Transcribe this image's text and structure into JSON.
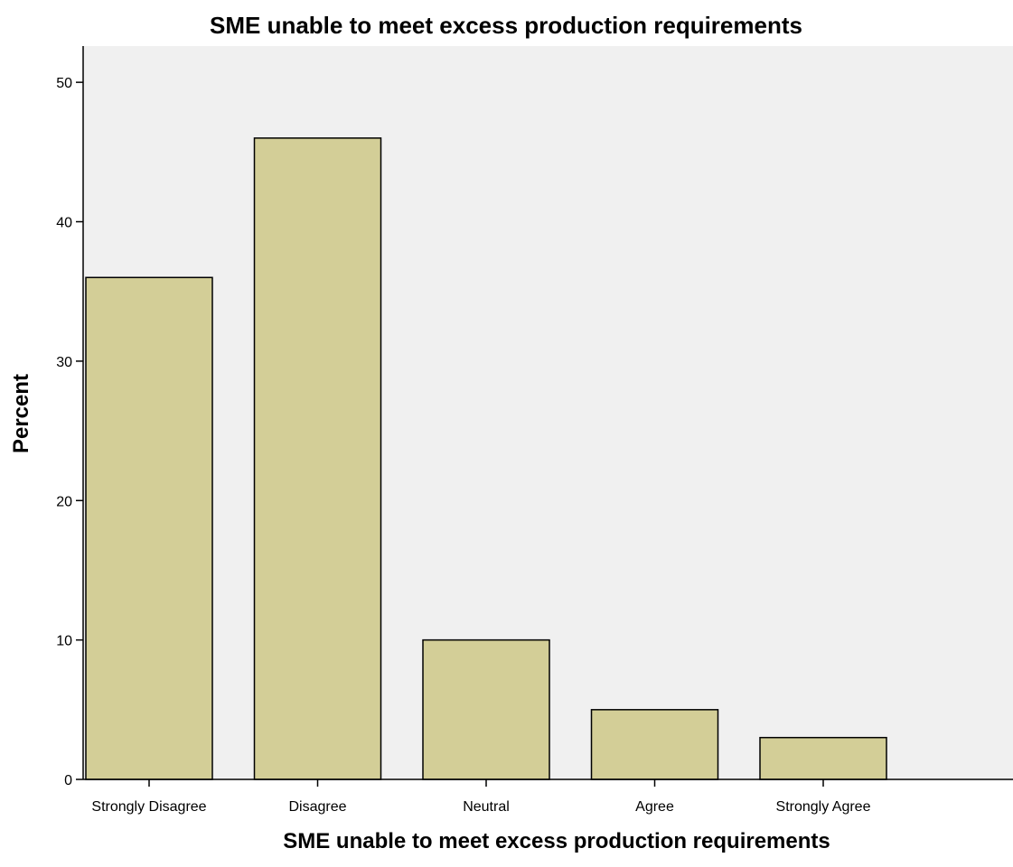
{
  "chart_data": {
    "type": "bar",
    "title": "SME unable to meet excess production requirements",
    "xlabel": "SME unable to meet excess production requirements",
    "ylabel": "Percent",
    "categories": [
      "Strongly Disagree",
      "Disagree",
      "Neutral",
      "Agree",
      "Strongly Agree"
    ],
    "values": [
      36,
      46,
      10,
      5,
      3
    ],
    "ylim": [
      0,
      52.6
    ],
    "yticks": [
      0,
      10,
      20,
      30,
      40,
      50
    ],
    "ytick_labels": [
      "0",
      "10",
      "20",
      "30",
      "40",
      "50"
    ],
    "grid": false,
    "legend": "none",
    "colors": {
      "bar_fill": "#d3ce97",
      "bar_stroke": "#000000",
      "plot_background": "#f0f0f0",
      "axis": "#000000"
    }
  }
}
